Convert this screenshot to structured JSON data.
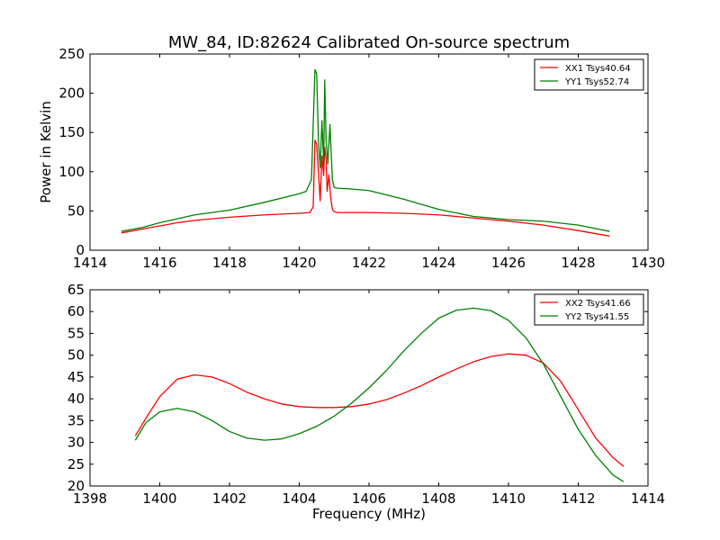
{
  "figure_title": "MW_84, ID:82624 Calibrated On-source spectrum",
  "chart_data": [
    {
      "type": "line",
      "title": "MW_84, ID:82624 Calibrated On-source spectrum",
      "xlabel": "",
      "ylabel": "Power in Kelvin",
      "xlim": [
        1414,
        1430
      ],
      "ylim": [
        0,
        250
      ],
      "xticks": [
        "1414",
        "1416",
        "1418",
        "1420",
        "1422",
        "1424",
        "1426",
        "1428",
        "1430"
      ],
      "yticks": [
        "0",
        "50",
        "100",
        "150",
        "200",
        "250"
      ],
      "grid": false,
      "legend_position": "top-right",
      "series": [
        {
          "name": "XX1 Tsys40.64",
          "color": "#ff0000",
          "x": [
            1414.9,
            1415.5,
            1416.0,
            1416.5,
            1417.0,
            1418.0,
            1419.0,
            1420.0,
            1420.3,
            1420.4,
            1420.45,
            1420.5,
            1420.55,
            1420.6,
            1420.65,
            1420.7,
            1420.73,
            1420.77,
            1420.8,
            1420.85,
            1420.9,
            1420.95,
            1421.0,
            1421.1,
            1421.5,
            1422.0,
            1423.0,
            1424.0,
            1425.0,
            1426.0,
            1427.0,
            1428.0,
            1428.9
          ],
          "y": [
            22,
            27,
            31,
            35,
            38,
            42,
            45,
            47,
            48,
            55,
            140,
            135,
            100,
            63,
            120,
            95,
            131,
            115,
            75,
            96,
            68,
            52,
            49,
            48,
            48,
            48,
            47,
            45,
            41,
            37,
            32,
            25,
            18
          ]
        },
        {
          "name": "YY1 Tsys52.74",
          "color": "#008000",
          "x": [
            1414.9,
            1415.5,
            1416.0,
            1416.5,
            1417.0,
            1418.0,
            1419.0,
            1420.0,
            1420.2,
            1420.35,
            1420.45,
            1420.5,
            1420.55,
            1420.6,
            1420.65,
            1420.7,
            1420.73,
            1420.77,
            1420.82,
            1420.88,
            1420.95,
            1421.0,
            1421.1,
            1421.5,
            1422.0,
            1423.0,
            1424.0,
            1425.0,
            1426.0,
            1427.0,
            1428.0,
            1428.9
          ],
          "y": [
            24,
            29,
            35,
            40,
            45,
            51,
            61,
            72,
            75,
            90,
            230,
            225,
            140,
            105,
            165,
            110,
            217,
            140,
            110,
            160,
            90,
            80,
            79,
            78,
            76,
            65,
            52,
            43,
            39,
            37,
            32,
            24
          ]
        }
      ]
    },
    {
      "type": "line",
      "title": "",
      "xlabel": "Frequency (MHz)",
      "ylabel": "",
      "xlim": [
        1398,
        1414
      ],
      "ylim": [
        20,
        65
      ],
      "xticks": [
        "1398",
        "1400",
        "1402",
        "1404",
        "1406",
        "1408",
        "1410",
        "1412",
        "1414"
      ],
      "yticks": [
        "20",
        "25",
        "30",
        "35",
        "40",
        "45",
        "50",
        "55",
        "60",
        "65"
      ],
      "grid": false,
      "legend_position": "top-right",
      "series": [
        {
          "name": "XX2 Tsys41.66",
          "color": "#ff0000",
          "x": [
            1399.3,
            1399.6,
            1400.0,
            1400.5,
            1401.0,
            1401.5,
            1402.0,
            1402.5,
            1403.0,
            1403.5,
            1404.0,
            1404.5,
            1405.0,
            1405.5,
            1406.0,
            1406.5,
            1407.0,
            1407.5,
            1408.0,
            1408.5,
            1409.0,
            1409.5,
            1410.0,
            1410.5,
            1411.0,
            1411.5,
            1412.0,
            1412.5,
            1413.0,
            1413.3
          ],
          "y": [
            31.5,
            35.5,
            40.5,
            44.5,
            45.5,
            45,
            43.5,
            41.5,
            40,
            38.8,
            38.2,
            38,
            38,
            38.2,
            38.8,
            39.8,
            41.3,
            43,
            45,
            46.8,
            48.5,
            49.7,
            50.3,
            50,
            48.2,
            44,
            37.5,
            31,
            26.5,
            24.5
          ]
        },
        {
          "name": "YY2 Tsys41.55",
          "color": "#008000",
          "x": [
            1399.3,
            1399.6,
            1400.0,
            1400.5,
            1401.0,
            1401.5,
            1402.0,
            1402.5,
            1403.0,
            1403.5,
            1404.0,
            1404.5,
            1405.0,
            1405.5,
            1406.0,
            1406.5,
            1407.0,
            1407.5,
            1408.0,
            1408.5,
            1409.0,
            1409.5,
            1410.0,
            1410.5,
            1411.0,
            1411.5,
            1412.0,
            1412.5,
            1413.0,
            1413.3
          ],
          "y": [
            30.5,
            34.5,
            37,
            37.8,
            37,
            35,
            32.5,
            31,
            30.5,
            30.8,
            32,
            33.7,
            36,
            39,
            42.5,
            46.5,
            51,
            55,
            58.5,
            60.3,
            60.8,
            60.2,
            58,
            54,
            48,
            40.5,
            33,
            27,
            22.5,
            21
          ]
        }
      ]
    }
  ]
}
